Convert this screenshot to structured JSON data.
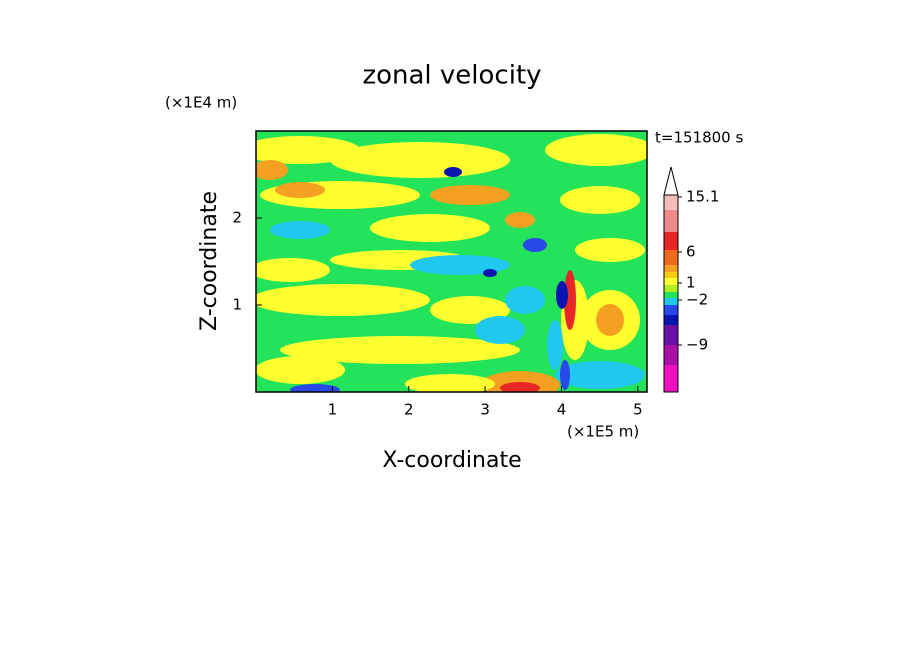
{
  "chart_data": {
    "type": "contour",
    "title": "zonal velocity",
    "x_label": "X-coordinate",
    "y_label": "Z-coordinate",
    "x_unit": "(×1E5 m)",
    "y_unit": "(×1E4 m)",
    "time_label": "t=151800 s",
    "xlim": [
      0,
      5.12
    ],
    "xticks": [
      1,
      2,
      3,
      4,
      5
    ],
    "ylim": [
      0,
      3
    ],
    "yticks": [
      1,
      2
    ],
    "colorbar": {
      "ticks": [
        15.1,
        6,
        1,
        {
          "value": -2,
          "label": "−2"
        },
        {
          "value": -9,
          "label": "−9"
        }
      ],
      "colors": [
        "#f5bcbc",
        "#f08a8a",
        "#e82828",
        "#f06a1e",
        "#f4a020",
        "#f8cc10",
        "#ffff30",
        "#b0f020",
        "#22e35a",
        "#20c8f0",
        "#2848e8",
        "#0a14b0",
        "#6a10a8",
        "#a810a8",
        "#f010c0"
      ]
    }
  }
}
